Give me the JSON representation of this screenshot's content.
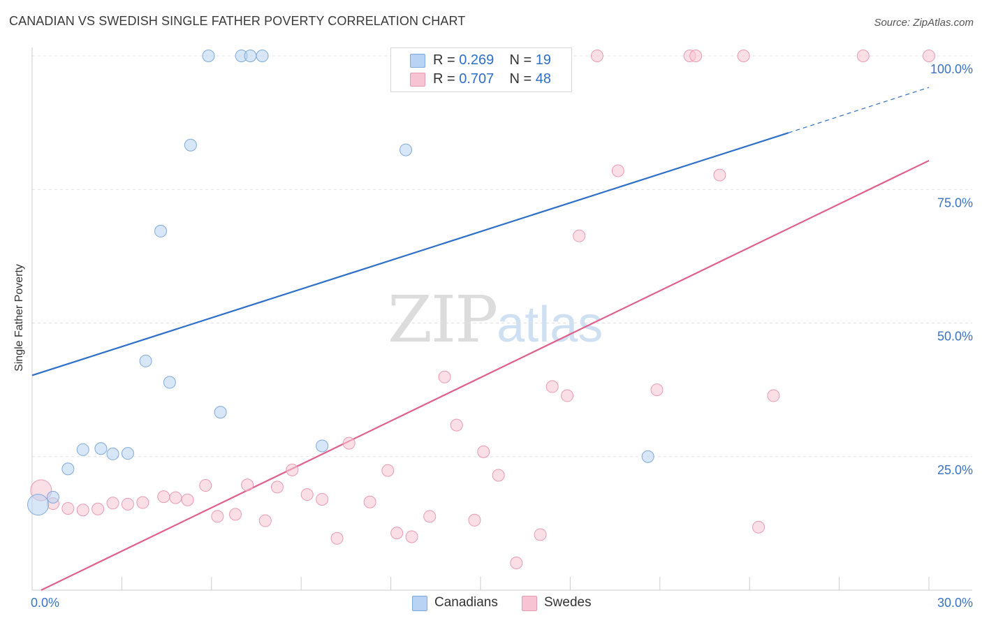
{
  "title": "CANADIAN VS SWEDISH SINGLE FATHER POVERTY CORRELATION CHART",
  "source": "Source: ZipAtlas.com",
  "watermark": {
    "zip": "ZIP",
    "atlas": "atlas"
  },
  "colors": {
    "canadians_fill": "#b8d3f3",
    "canadians_stroke": "#7fa9dc",
    "canadians_line": "#2e6fc7",
    "swedes_fill": "#f7c4d4",
    "swedes_stroke": "#e89ab3",
    "swedes_line": "#e0608c",
    "grid": "#e2e2e2",
    "tick_label": "#3a73c4"
  },
  "legend": {
    "rows": [
      {
        "r_label": "R =",
        "r_value": "0.269",
        "n_label": "N =",
        "n_value": "19"
      },
      {
        "r_label": "R =",
        "r_value": "0.707",
        "n_label": "N =",
        "n_value": "48"
      }
    ]
  },
  "bottom_legend": {
    "canadians": "Canadians",
    "swedes": "Swedes"
  },
  "chart_data": {
    "type": "scatter",
    "title": "CANADIAN VS SWEDISH SINGLE FATHER POVERTY CORRELATION CHART",
    "xlabel": "",
    "ylabel": "Single Father Poverty",
    "xlim": [
      0,
      30
    ],
    "ylim": [
      0,
      100
    ],
    "x_tick_labels": [
      "0.0%",
      "30.0%"
    ],
    "y_tick_labels": [
      "25.0%",
      "50.0%",
      "75.0%",
      "100.0%"
    ],
    "y_ticks": [
      25,
      50,
      75,
      100
    ],
    "grid": true,
    "series": [
      {
        "name": "Canadians",
        "r": 0.269,
        "n": 19,
        "trend": {
          "x0": 0,
          "y0": 40.2,
          "x1": 25.3,
          "y1": 85.6,
          "dashed_to_x": 30,
          "dashed_to_y": 94.1
        },
        "points": [
          {
            "x": 5.9,
            "y": 100
          },
          {
            "x": 7.0,
            "y": 100
          },
          {
            "x": 7.3,
            "y": 100
          },
          {
            "x": 7.7,
            "y": 100
          },
          {
            "x": 5.3,
            "y": 83.3
          },
          {
            "x": 12.5,
            "y": 82.4
          },
          {
            "x": 4.3,
            "y": 67.2
          },
          {
            "x": 3.8,
            "y": 42.9
          },
          {
            "x": 4.6,
            "y": 38.9
          },
          {
            "x": 6.3,
            "y": 33.3
          },
          {
            "x": 1.7,
            "y": 26.3
          },
          {
            "x": 2.3,
            "y": 26.5
          },
          {
            "x": 2.7,
            "y": 25.5
          },
          {
            "x": 3.2,
            "y": 25.6
          },
          {
            "x": 9.7,
            "y": 27.0
          },
          {
            "x": 20.6,
            "y": 25.0
          },
          {
            "x": 1.2,
            "y": 22.7
          },
          {
            "x": 0.7,
            "y": 17.4
          },
          {
            "x": 0.2,
            "y": 16.0,
            "size": "large"
          }
        ]
      },
      {
        "name": "Swedes",
        "r": 0.707,
        "n": 48,
        "trend": {
          "x0": 0.3,
          "y0": 0,
          "x1": 30,
          "y1": 80.4
        },
        "points": [
          {
            "x": 18.9,
            "y": 100
          },
          {
            "x": 22.0,
            "y": 100
          },
          {
            "x": 22.2,
            "y": 100
          },
          {
            "x": 23.8,
            "y": 100
          },
          {
            "x": 27.8,
            "y": 100
          },
          {
            "x": 30.0,
            "y": 100
          },
          {
            "x": 19.6,
            "y": 78.5
          },
          {
            "x": 23.0,
            "y": 77.7
          },
          {
            "x": 18.3,
            "y": 66.3
          },
          {
            "x": 13.8,
            "y": 39.9
          },
          {
            "x": 17.4,
            "y": 38.1
          },
          {
            "x": 17.9,
            "y": 36.4
          },
          {
            "x": 20.9,
            "y": 37.5
          },
          {
            "x": 24.8,
            "y": 36.4
          },
          {
            "x": 14.2,
            "y": 30.9
          },
          {
            "x": 10.6,
            "y": 27.5
          },
          {
            "x": 15.1,
            "y": 25.9
          },
          {
            "x": 8.7,
            "y": 22.5
          },
          {
            "x": 11.9,
            "y": 22.4
          },
          {
            "x": 15.6,
            "y": 21.5
          },
          {
            "x": 5.8,
            "y": 19.6
          },
          {
            "x": 7.2,
            "y": 19.7
          },
          {
            "x": 8.2,
            "y": 19.3
          },
          {
            "x": 4.4,
            "y": 17.5
          },
          {
            "x": 4.8,
            "y": 17.3
          },
          {
            "x": 5.2,
            "y": 16.9
          },
          {
            "x": 9.2,
            "y": 17.9
          },
          {
            "x": 9.7,
            "y": 17.0
          },
          {
            "x": 11.3,
            "y": 16.5
          },
          {
            "x": 2.7,
            "y": 16.3
          },
          {
            "x": 3.2,
            "y": 16.1
          },
          {
            "x": 3.7,
            "y": 16.4
          },
          {
            "x": 1.2,
            "y": 15.3
          },
          {
            "x": 1.7,
            "y": 15.0
          },
          {
            "x": 2.2,
            "y": 15.2
          },
          {
            "x": 0.7,
            "y": 16.2
          },
          {
            "x": 0.3,
            "y": 18.7,
            "size": "large"
          },
          {
            "x": 6.2,
            "y": 13.8
          },
          {
            "x": 6.8,
            "y": 14.2
          },
          {
            "x": 7.8,
            "y": 13.0
          },
          {
            "x": 13.3,
            "y": 13.8
          },
          {
            "x": 14.8,
            "y": 13.1
          },
          {
            "x": 24.3,
            "y": 11.8
          },
          {
            "x": 12.2,
            "y": 10.7
          },
          {
            "x": 12.7,
            "y": 10.0
          },
          {
            "x": 17.0,
            "y": 10.4
          },
          {
            "x": 10.2,
            "y": 9.7
          },
          {
            "x": 16.2,
            "y": 5.1
          }
        ]
      }
    ]
  }
}
